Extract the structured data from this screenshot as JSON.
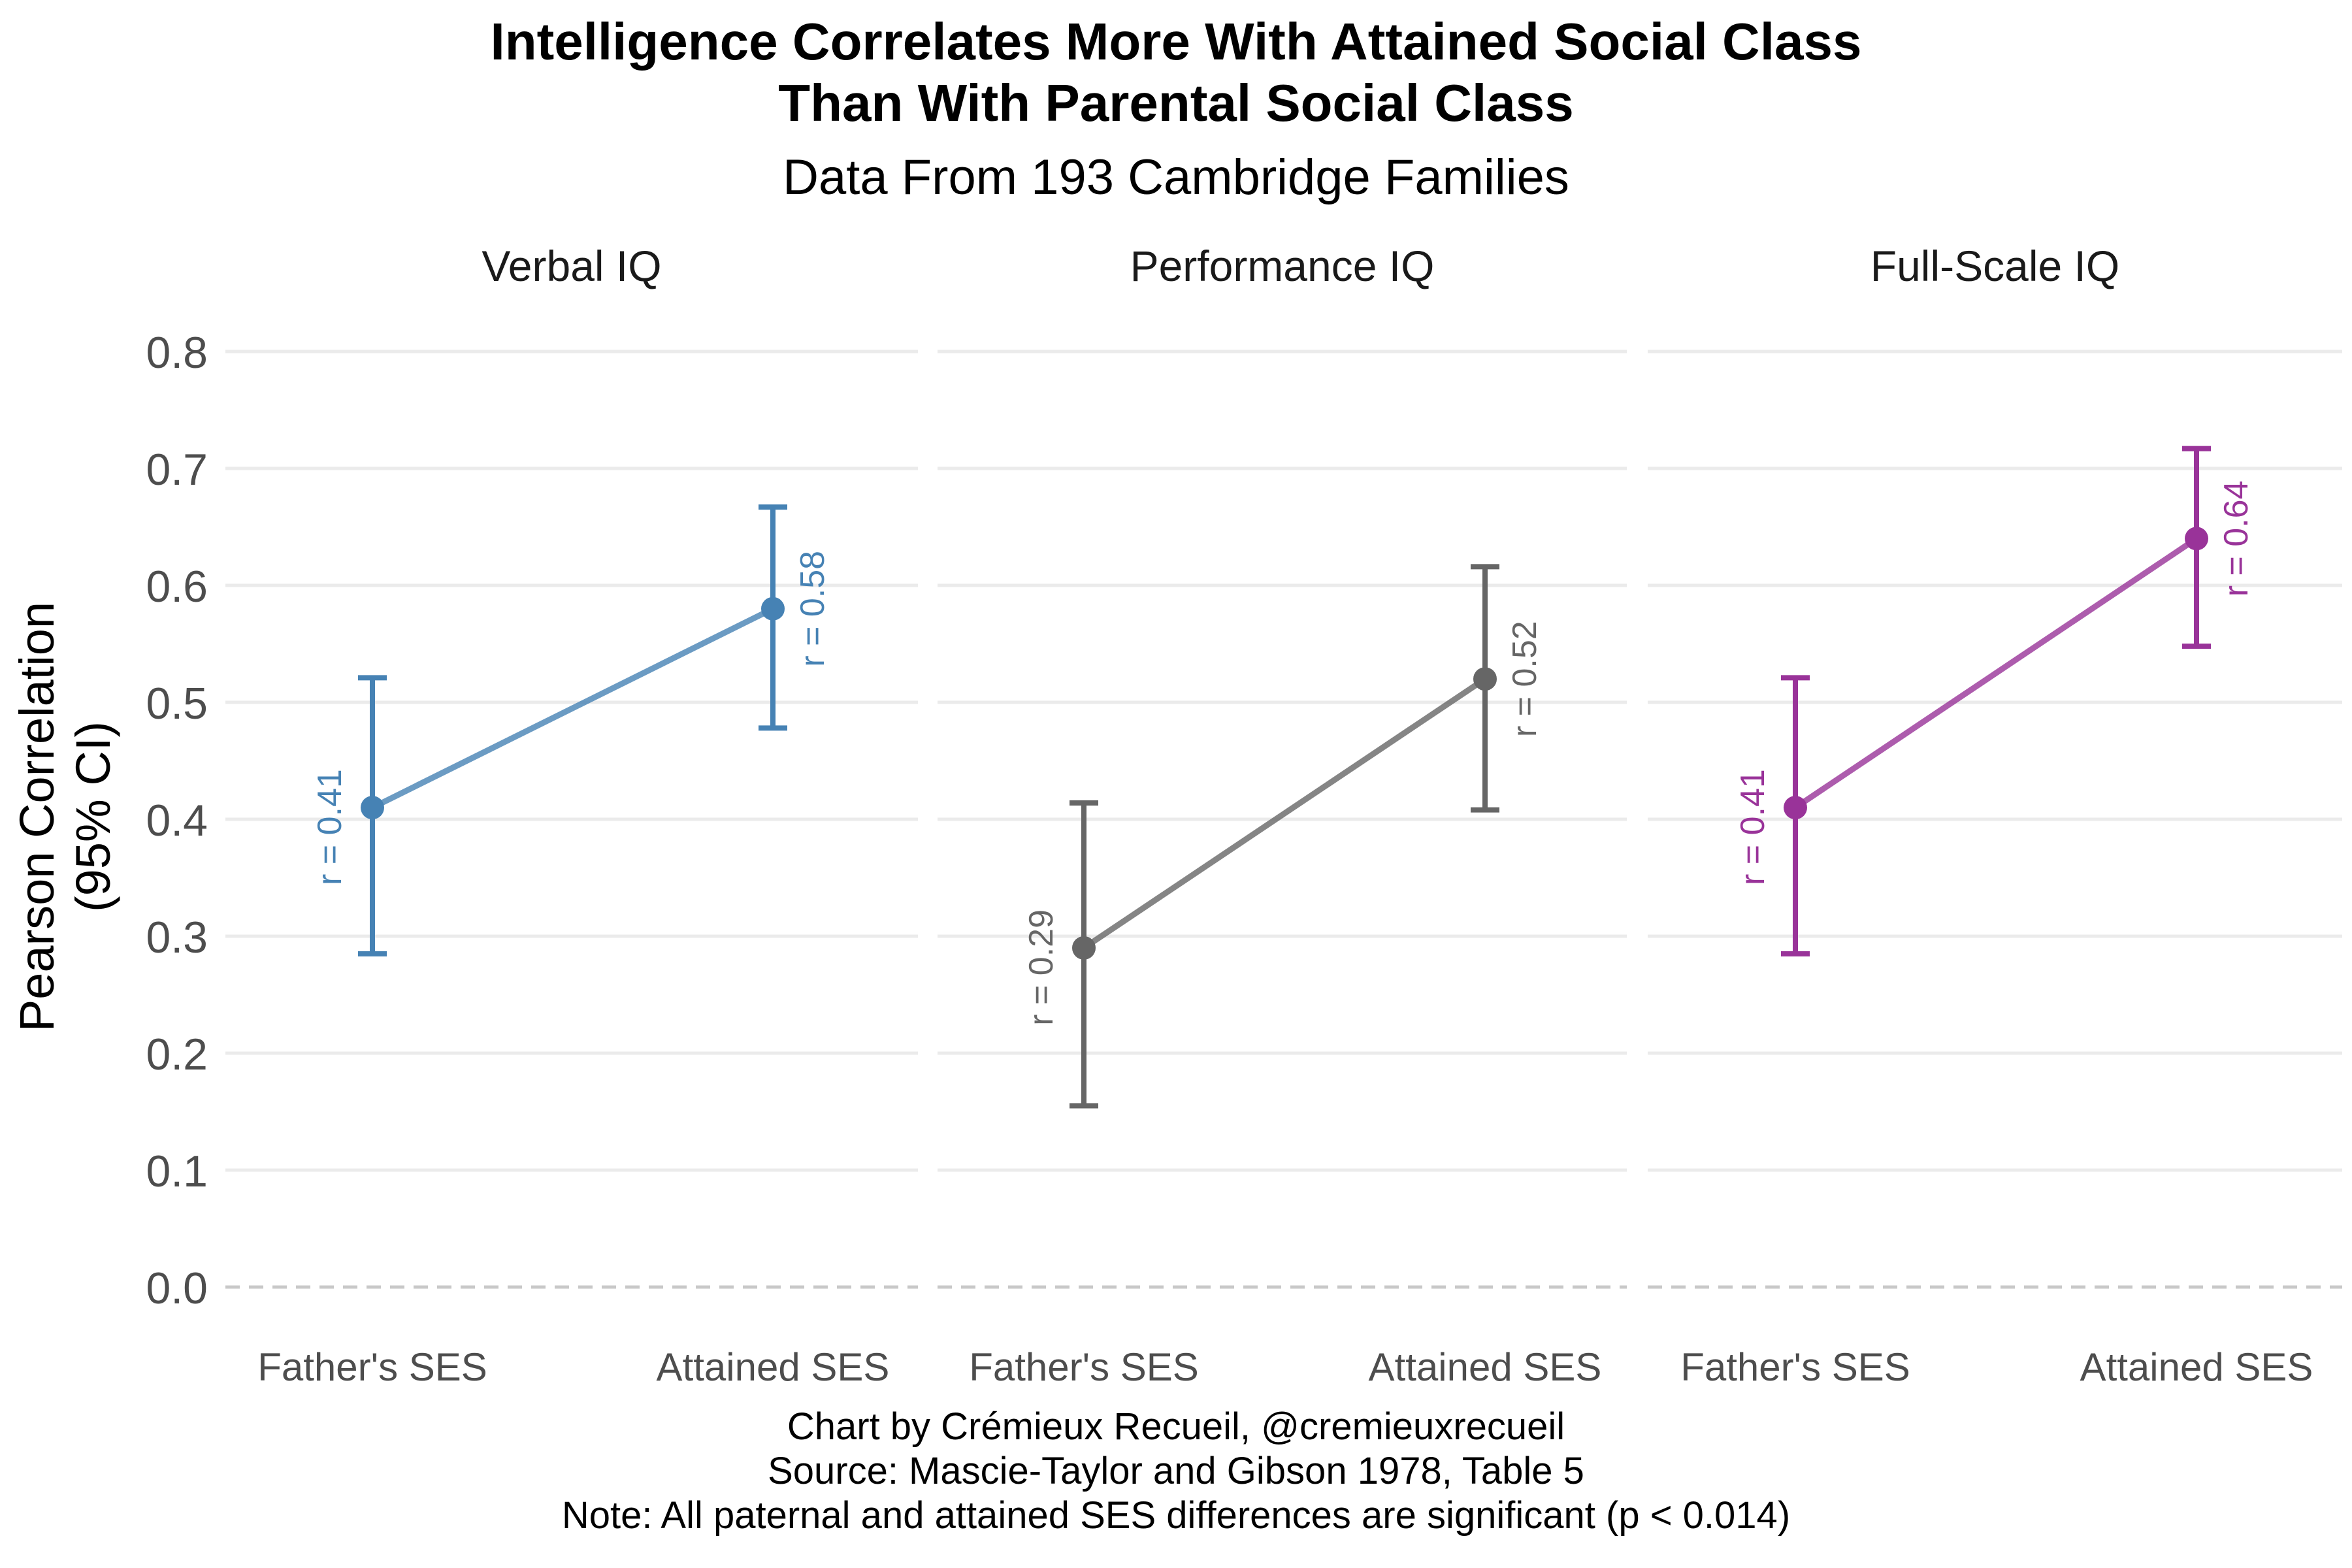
{
  "title_line1": "Intelligence Correlates More With Attained Social Class",
  "title_line2": "Than With Parental Social Class",
  "subtitle": "Data From 193 Cambridge Families",
  "caption": {
    "line1": "Chart by Crémieux Recueil, @cremieuxrecueil",
    "line2": "Source: Mascie-Taylor and Gibson 1978, Table 5",
    "line3": "Note: All paternal and attained SES differences are significant (p < 0.014)"
  },
  "chart_data": {
    "type": "line",
    "ylabel_line1": "Pearson Correlation",
    "ylabel_line2": "(95% CI)",
    "ylim": [
      0,
      0.8
    ],
    "yticks": [
      "0.0",
      "0.1",
      "0.2",
      "0.3",
      "0.4",
      "0.5",
      "0.6",
      "0.7",
      "0.8"
    ],
    "categories": [
      "Father's SES",
      "Attained SES"
    ],
    "grid": true,
    "panels": [
      {
        "name": "Verbal IQ",
        "color": "#4682B4",
        "values": [
          0.41,
          0.58
        ],
        "ci_low": [
          0.285,
          0.478
        ],
        "ci_high": [
          0.521,
          0.667
        ],
        "labels": [
          "r = 0.41",
          "r = 0.58"
        ]
      },
      {
        "name": "Performance IQ",
        "color": "#666666",
        "values": [
          0.29,
          0.52
        ],
        "ci_low": [
          0.155,
          0.408
        ],
        "ci_high": [
          0.414,
          0.616
        ],
        "labels": [
          "r = 0.29",
          "r = 0.52"
        ]
      },
      {
        "name": "Full-Scale IQ",
        "color": "#993399",
        "values": [
          0.41,
          0.64
        ],
        "ci_low": [
          0.285,
          0.548
        ],
        "ci_high": [
          0.521,
          0.717
        ],
        "labels": [
          "r = 0.41",
          "r = 0.64"
        ]
      }
    ]
  }
}
